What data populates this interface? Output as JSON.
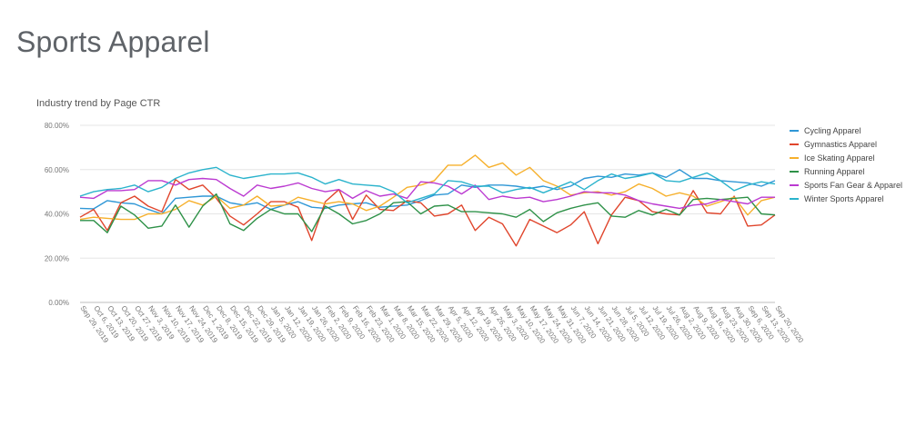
{
  "page": {
    "title": "Sports Apparel"
  },
  "chart_data": {
    "type": "line",
    "title": "Industry trend by Page CTR",
    "xlabel": "",
    "ylabel": "",
    "ylim": [
      0,
      80
    ],
    "y_ticks": [
      "0.00%",
      "20.00%",
      "40.00%",
      "60.00%",
      "80.00%"
    ],
    "y_tick_values": [
      0,
      20,
      40,
      60,
      80
    ],
    "grid": true,
    "legend_position": "right",
    "x": [
      "Sep 29, 2019",
      "Oct 6, 2019",
      "Oct 13, 2019",
      "Oct 20, 2019",
      "Oct 27, 2019",
      "Nov 3, 2019",
      "Nov 10, 2019",
      "Nov 17, 2019",
      "Nov 24, 2019",
      "Dec 1, 2019",
      "Dec 8, 2019",
      "Dec 15, 2019",
      "Dec 22, 2019",
      "Dec 29, 2019",
      "Jan 5, 2020",
      "Jan 12, 2020",
      "Jan 19, 2020",
      "Jan 26, 2020",
      "Feb 2, 2020",
      "Feb 9, 2020",
      "Feb 16, 2020",
      "Feb 23, 2020",
      "Mar 1, 2020",
      "Mar 8, 2020",
      "Mar 15, 2020",
      "Mar 22, 2020",
      "Mar 29, 2020",
      "Apr 5, 2020",
      "Apr 12, 2020",
      "Apr 19, 2020",
      "Apr 26, 2020",
      "May 3, 2020",
      "May 10, 2020",
      "May 17, 2020",
      "May 24, 2020",
      "May 31, 2020",
      "Jun 7, 2020",
      "Jun 14, 2020",
      "Jun 21, 2020",
      "Jun 28, 2020",
      "Jul 5, 2020",
      "Jul 12, 2020",
      "Jul 19, 2020",
      "Jul 26, 2020",
      "Aug 2, 2020",
      "Aug 9, 2020",
      "Aug 16, 2020",
      "Aug 23, 2020",
      "Aug 30, 2020",
      "Sep 6, 2020",
      "Sep 13, 2020",
      "Sep 20, 2020"
    ],
    "series": [
      {
        "name": "Cycling Apparel",
        "color": "#2f97d6",
        "values": [
          42.5,
          42.3,
          46.0,
          45.0,
          44.5,
          42.0,
          40.0,
          47.0,
          47.5,
          48.0,
          48.0,
          45.0,
          44.0,
          45.0,
          42.0,
          44.0,
          45.5,
          43.0,
          42.5,
          44.0,
          44.5,
          45.0,
          43.0,
          43.5,
          44.0,
          46.0,
          48.5,
          49.0,
          53.0,
          52.0,
          53.0,
          53.0,
          52.5,
          51.5,
          52.5,
          51.0,
          52.5,
          56.0,
          57.0,
          56.5,
          58.0,
          57.5,
          58.5,
          56.5,
          60.0,
          56.0,
          56.0,
          55.0,
          54.5,
          54.0,
          52.5,
          55.0
        ]
      },
      {
        "name": "Gymnastics Apparel",
        "color": "#e0452c",
        "values": [
          38.5,
          42.0,
          32.5,
          45.0,
          48.0,
          43.5,
          41.0,
          55.5,
          51.0,
          53.0,
          47.0,
          39.0,
          35.0,
          40.0,
          45.5,
          45.5,
          43.0,
          28.0,
          45.5,
          51.0,
          37.5,
          48.5,
          42.0,
          41.5,
          46.0,
          45.0,
          39.0,
          40.0,
          44.0,
          32.5,
          38.5,
          35.5,
          25.5,
          37.5,
          34.5,
          31.5,
          35.0,
          41.0,
          26.5,
          39.5,
          47.5,
          46.0,
          41.0,
          40.0,
          39.5,
          50.5,
          40.5,
          40.0,
          48.0,
          34.5,
          35.0,
          39.5
        ]
      },
      {
        "name": "Ice Skating Apparel",
        "color": "#f6b02c",
        "values": [
          37.5,
          38.5,
          38.0,
          37.5,
          37.5,
          40.0,
          40.0,
          42.0,
          46.0,
          44.0,
          48.0,
          42.5,
          44.0,
          48.0,
          43.5,
          44.0,
          47.5,
          46.0,
          44.5,
          45.5,
          44.5,
          41.5,
          43.5,
          47.5,
          52.0,
          53.0,
          55.0,
          62.0,
          62.0,
          66.5,
          61.0,
          63.0,
          57.5,
          61.0,
          55.0,
          52.5,
          48.5,
          49.5,
          50.0,
          48.5,
          50.0,
          53.5,
          51.5,
          48.0,
          49.5,
          48.0,
          43.5,
          45.5,
          47.5,
          39.5,
          46.0,
          47.5
        ]
      },
      {
        "name": "Running Apparel",
        "color": "#2e9148",
        "values": [
          37.0,
          37.0,
          31.5,
          43.5,
          39.5,
          33.5,
          34.5,
          44.0,
          34.0,
          43.5,
          49.0,
          35.5,
          32.5,
          38.0,
          42.0,
          40.0,
          40.0,
          32.0,
          43.5,
          40.0,
          35.5,
          37.0,
          40.0,
          45.0,
          45.5,
          40.0,
          43.5,
          44.0,
          41.0,
          41.0,
          40.5,
          40.0,
          38.5,
          42.0,
          36.5,
          40.5,
          42.5,
          44.0,
          45.0,
          39.0,
          38.5,
          41.5,
          39.5,
          42.0,
          39.5,
          46.5,
          47.0,
          46.5,
          47.0,
          47.5,
          40.0,
          39.5
        ]
      },
      {
        "name": "Sports Fan Gear & Apparel",
        "color": "#bb3ad1",
        "values": [
          47.5,
          47.0,
          50.5,
          50.5,
          51.0,
          55.0,
          55.0,
          53.0,
          55.5,
          56.0,
          55.5,
          51.5,
          48.0,
          53.0,
          51.5,
          52.5,
          54.0,
          51.5,
          50.0,
          51.0,
          47.0,
          50.5,
          48.0,
          49.0,
          47.0,
          54.5,
          54.0,
          52.5,
          49.0,
          53.0,
          46.5,
          48.0,
          47.0,
          47.5,
          45.5,
          46.5,
          48.0,
          50.0,
          49.5,
          49.5,
          48.5,
          46.0,
          44.5,
          43.5,
          42.5,
          44.0,
          44.5,
          46.5,
          45.5,
          44.5,
          47.5,
          47.5
        ]
      },
      {
        "name": "Winter Sports Apparel",
        "color": "#2ab3cc",
        "values": [
          48.0,
          50.0,
          51.0,
          51.5,
          53.0,
          50.0,
          52.0,
          56.0,
          58.5,
          60.0,
          61.0,
          57.5,
          56.0,
          57.0,
          58.0,
          58.0,
          58.5,
          56.5,
          53.5,
          55.5,
          53.5,
          53.0,
          52.5,
          50.0,
          45.0,
          47.0,
          49.0,
          55.0,
          54.5,
          52.5,
          52.5,
          49.5,
          51.0,
          52.0,
          49.5,
          52.0,
          54.5,
          51.0,
          55.0,
          58.0,
          56.0,
          57.0,
          58.5,
          55.0,
          54.5,
          56.5,
          58.5,
          55.0,
          50.5,
          53.0,
          54.5,
          53.5
        ]
      }
    ]
  }
}
